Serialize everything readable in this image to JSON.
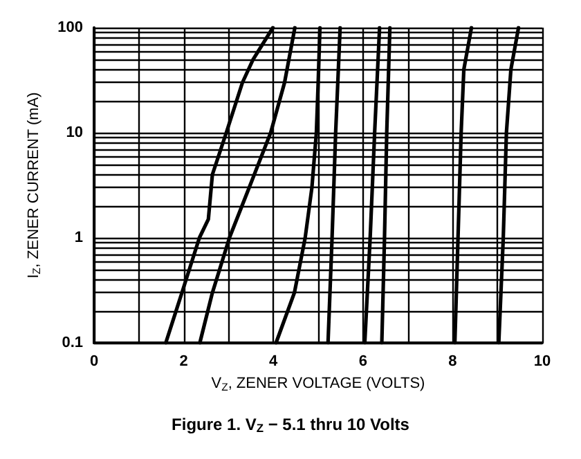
{
  "chart_data": {
    "type": "line",
    "title": "Figure 1. V$_{Z}$ − 5.1 thru 10 Volts",
    "xlabel": "V$_{Z}$, ZENER VOLTAGE (VOLTS)",
    "ylabel": "I$_{Z}$, ZENER CURRENT (mA)",
    "log": "y",
    "grid": true,
    "legend": false,
    "marker": "none",
    "line_style": "solid",
    "xlim": [
      0,
      10
    ],
    "xticks": [
      0,
      {
        "value": 1,
        "label": null
      },
      2,
      {
        "value": 3,
        "label": null
      },
      4,
      {
        "value": 5,
        "label": null
      },
      6,
      {
        "value": 7,
        "label": null
      },
      8,
      {
        "value": 9,
        "label": null
      },
      10
    ],
    "ylim": [
      0.1,
      100
    ],
    "yticks": [
      0.1,
      {
        "value": 0.2,
        "label": null
      },
      {
        "value": 0.3,
        "label": null
      },
      {
        "value": 0.4,
        "label": null
      },
      {
        "value": 0.5,
        "label": null
      },
      {
        "value": 0.6,
        "label": null
      },
      {
        "value": 0.7,
        "label": null
      },
      {
        "value": 0.8,
        "label": null
      },
      {
        "value": 0.9,
        "label": null
      },
      1,
      {
        "value": 2,
        "label": null
      },
      {
        "value": 3,
        "label": null
      },
      {
        "value": 4,
        "label": null
      },
      {
        "value": 5,
        "label": null
      },
      {
        "value": 6,
        "label": null
      },
      {
        "value": 7,
        "label": null
      },
      {
        "value": 8,
        "label": null
      },
      {
        "value": 9,
        "label": null
      },
      10,
      {
        "value": 20,
        "label": null
      },
      {
        "value": 30,
        "label": null
      },
      {
        "value": 40,
        "label": null
      },
      {
        "value": 50,
        "label": null
      },
      {
        "value": 60,
        "label": null
      },
      {
        "value": 70,
        "label": null
      },
      {
        "value": 80,
        "label": null
      },
      {
        "value": 90,
        "label": null
      },
      100
    ],
    "series": [
      {
        "color": "#000000",
        "x": [
          1.6,
          1.96,
          2.35,
          2.55,
          2.64,
          2.95,
          3.31,
          3.55,
          3.99
        ],
        "values": [
          0.1,
          0.3,
          1,
          1.5,
          4,
          10,
          30,
          50,
          100
        ]
      },
      {
        "color": "#000000",
        "x": [
          2.36,
          2.64,
          3.02,
          3.46,
          3.94,
          4.25,
          4.48
        ],
        "values": [
          0.1,
          0.3,
          1,
          3,
          10,
          30,
          100
        ]
      },
      {
        "color": "#000000",
        "x": [
          4.06,
          4.47,
          4.71,
          4.86,
          4.96,
          5.0,
          5.04
        ],
        "values": [
          0.1,
          0.3,
          1,
          3,
          10,
          30,
          100
        ]
      },
      {
        "color": "#000000",
        "x": [
          5.22,
          5.31,
          5.39,
          5.49
        ],
        "values": [
          0.1,
          1,
          10,
          100
        ]
      },
      {
        "color": "#000000",
        "x": [
          6.04,
          6.16,
          6.26,
          6.37
        ],
        "values": [
          0.1,
          1,
          10,
          100
        ]
      },
      {
        "color": "#000000",
        "x": [
          6.42,
          6.48,
          6.53,
          6.6
        ],
        "values": [
          0.1,
          1,
          10,
          100
        ]
      },
      {
        "color": "#000000",
        "x": [
          8.05,
          8.12,
          8.19,
          8.25,
          8.42
        ],
        "values": [
          0.1,
          1,
          10,
          40,
          100
        ]
      },
      {
        "color": "#000000",
        "x": [
          9.03,
          9.13,
          9.2,
          9.3,
          9.47
        ],
        "values": [
          0.1,
          1,
          10,
          40,
          100
        ]
      }
    ]
  }
}
